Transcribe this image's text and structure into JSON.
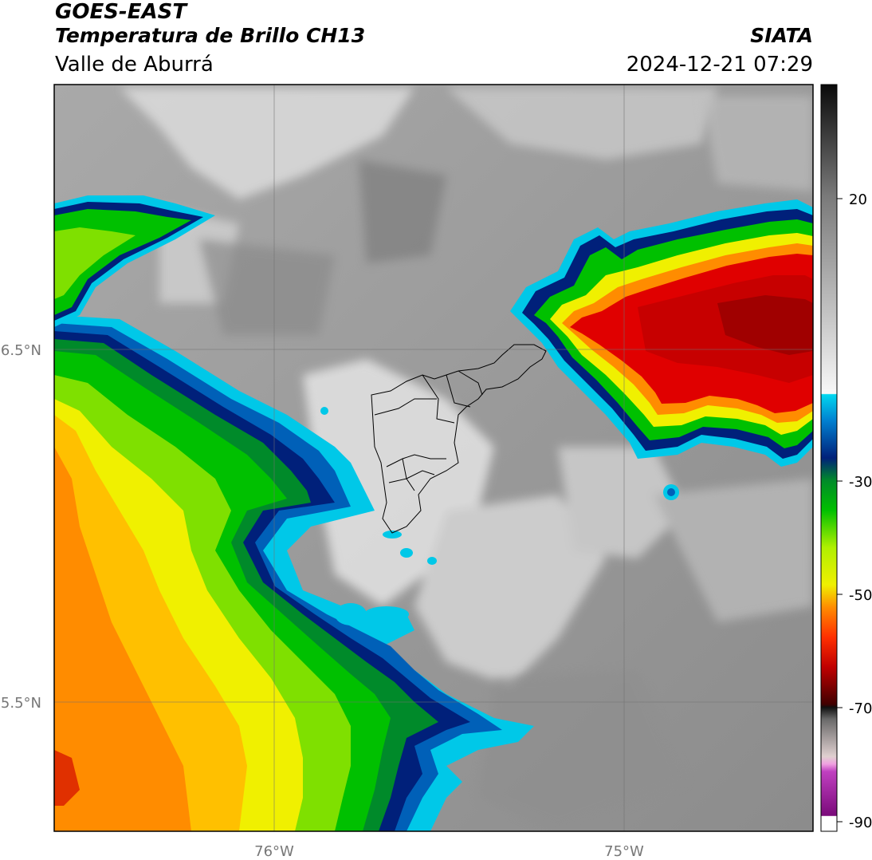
{
  "header": {
    "satellite": "GOES-EAST",
    "product": "Temperatura de Brillo CH13",
    "region": "Valle de Aburrá",
    "organization": "SIATA",
    "datetime": "2024-12-21 07:29"
  },
  "map": {
    "lat_ticks": [
      {
        "value": 6.5,
        "label": "6.5°N"
      },
      {
        "value": 5.5,
        "label": "5.5°N"
      }
    ],
    "lon_ticks": [
      {
        "value": -76,
        "label": "76°W"
      },
      {
        "value": -75,
        "label": "75°W"
      }
    ],
    "grid": true
  },
  "colorbar": {
    "range": [
      -90,
      30
    ],
    "ticks": [
      {
        "value": 20,
        "label": "20"
      },
      {
        "value": -30,
        "label": "-30"
      },
      {
        "value": -50,
        "label": "-50"
      },
      {
        "value": -70,
        "label": "-70"
      },
      {
        "value": -90,
        "label": "-90"
      }
    ]
  },
  "colors": {
    "warm_gray": "#8a8a8a",
    "light": "#e6e6e6",
    "cyan": "#00c8e8",
    "dark_blue": "#00207a",
    "green": "#00c000",
    "yellow": "#f0f000",
    "orange": "#ff8c00",
    "red": "#e00000",
    "dark_red": "#900000",
    "magenta": "#c040c0"
  }
}
